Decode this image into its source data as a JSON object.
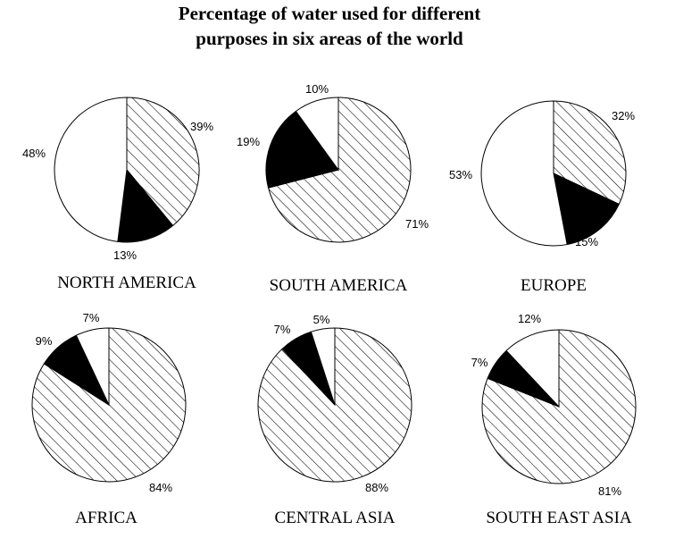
{
  "chart_data": {
    "type": "pie",
    "title": "Percentage of water used for different purposes in six areas of the world",
    "title_lines": [
      "Percentage of water used for different",
      "purposes in six areas of the world"
    ],
    "colors": {
      "hatched": "#000000",
      "solid": "#000000",
      "empty": "#ffffff"
    },
    "charts": [
      {
        "name": "NORTH AMERICA",
        "slices": [
          {
            "value": 39,
            "label": "39%",
            "pattern": "hatched"
          },
          {
            "value": 13,
            "label": "13%",
            "pattern": "solid"
          },
          {
            "value": 48,
            "label": "48%",
            "pattern": "empty"
          }
        ]
      },
      {
        "name": "SOUTH AMERICA",
        "slices": [
          {
            "value": 71,
            "label": "71%",
            "pattern": "hatched"
          },
          {
            "value": 19,
            "label": "19%",
            "pattern": "solid"
          },
          {
            "value": 10,
            "label": "10%",
            "pattern": "empty"
          }
        ]
      },
      {
        "name": "EUROPE",
        "slices": [
          {
            "value": 32,
            "label": "32%",
            "pattern": "hatched"
          },
          {
            "value": 15,
            "label": "15%",
            "pattern": "solid"
          },
          {
            "value": 53,
            "label": "53%",
            "pattern": "empty"
          }
        ]
      },
      {
        "name": "AFRICA",
        "slices": [
          {
            "value": 84,
            "label": "84%",
            "pattern": "hatched"
          },
          {
            "value": 9,
            "label": "9%",
            "pattern": "solid"
          },
          {
            "value": 7,
            "label": "7%",
            "pattern": "empty"
          }
        ]
      },
      {
        "name": "CENTRAL ASIA",
        "slices": [
          {
            "value": 88,
            "label": "88%",
            "pattern": "hatched"
          },
          {
            "value": 7,
            "label": "7%",
            "pattern": "solid"
          },
          {
            "value": 5,
            "label": "5%",
            "pattern": "empty"
          }
        ]
      },
      {
        "name": "SOUTH EAST ASIA",
        "slices": [
          {
            "value": 81,
            "label": "81%",
            "pattern": "hatched"
          },
          {
            "value": 7,
            "label": "7%",
            "pattern": "solid"
          },
          {
            "value": 12,
            "label": "12%",
            "pattern": "empty"
          }
        ]
      }
    ]
  }
}
